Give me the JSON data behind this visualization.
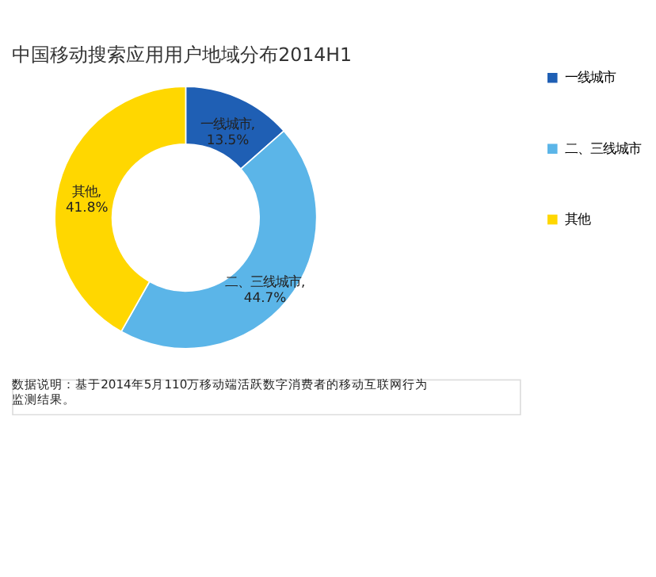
{
  "chart_data": {
    "type": "donut",
    "title": "中国移动搜索应用用户地域分布2014H1",
    "categories": [
      "一线城市",
      "二、三线城市",
      "其他"
    ],
    "values": [
      13.5,
      44.7,
      41.8
    ],
    "colors": [
      "#1f5fb4",
      "#5bb5e8",
      "#ffd700"
    ],
    "value_labels": [
      "一线城市, 13.5%",
      "二、三线城市, 44.7%",
      "其他, 41.8%"
    ],
    "legend": "right",
    "annotations": [
      "数据说明：基于2014年5月110万移动端活跃数字消费者的移动互联网行为监测结果。"
    ]
  }
}
